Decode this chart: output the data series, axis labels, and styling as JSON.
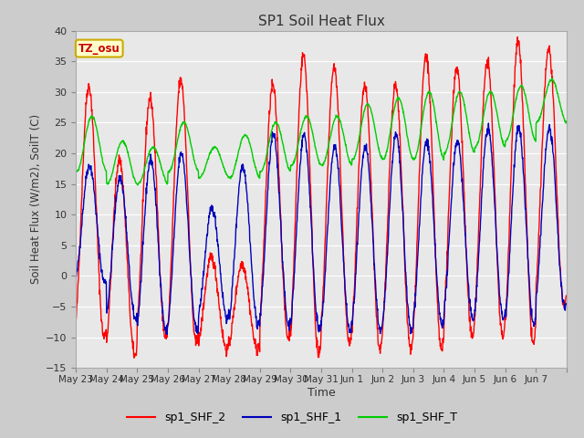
{
  "title": "SP1 Soil Heat Flux",
  "xlabel": "Time",
  "ylabel": "Soil Heat Flux (W/m2), SoilT (C)",
  "ylim": [
    -15,
    40
  ],
  "color_shf2": "#ff0000",
  "color_shf1": "#0000bb",
  "color_shft": "#00cc00",
  "tz_label": "TZ_osu",
  "tz_box_color": "#ffffcc",
  "tz_text_color": "#cc0000",
  "tz_border_color": "#ccaa00",
  "plot_bg_color": "#e8e8e8",
  "fig_bg_color": "#cccccc",
  "grid_color": "#ffffff",
  "x_tick_labels": [
    "May 23",
    "May 24",
    "May 25",
    "May 26",
    "May 27",
    "May 28",
    "May 29",
    "May 30",
    "May 31",
    "Jun 1",
    "Jun 2",
    "Jun 3",
    "Jun 4",
    "Jun 5",
    "Jun 6",
    "Jun 7"
  ],
  "yticks": [
    -15,
    -10,
    -5,
    0,
    5,
    10,
    15,
    20,
    25,
    30,
    35,
    40
  ],
  "n_days": 16,
  "ppd": 96
}
